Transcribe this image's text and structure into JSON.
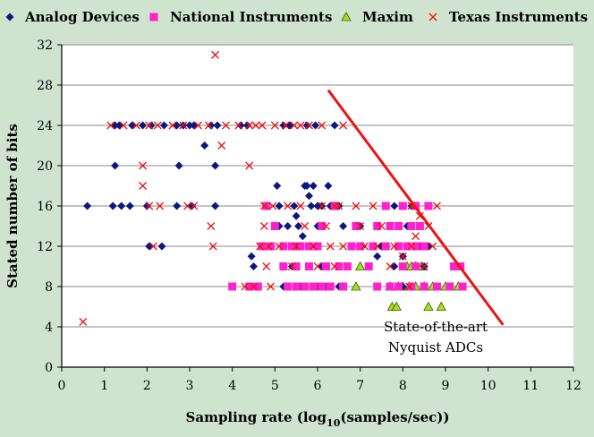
{
  "chart_data": {
    "type": "scatter",
    "title": "",
    "xlabel_main": "Sampling rate (log",
    "xlabel_sub": "10",
    "xlabel_tail": "(samples/sec))",
    "ylabel": "Stated number of bits",
    "xlim": [
      0,
      12
    ],
    "ylim": [
      0,
      32
    ],
    "xticks": [
      0,
      1,
      2,
      3,
      4,
      5,
      6,
      7,
      8,
      9,
      10,
      11,
      12
    ],
    "yticks": [
      0,
      4,
      8,
      12,
      16,
      20,
      24,
      28,
      32
    ],
    "grid": "horizontal",
    "legend_position": "top",
    "annotation_lines": [
      "State-of-the-art",
      "Nyquist ADCs"
    ],
    "frontier_line": {
      "x": [
        6.25,
        10.35
      ],
      "y": [
        27.5,
        4.2
      ],
      "color": "#ee1111"
    },
    "series": [
      {
        "name": "Analog Devices",
        "marker": "diamond",
        "color": "#0a1880",
        "points": [
          [
            0.6,
            16
          ],
          [
            1.2,
            16
          ],
          [
            1.4,
            16
          ],
          [
            1.6,
            16
          ],
          [
            1.25,
            20
          ],
          [
            1.25,
            24
          ],
          [
            1.35,
            24
          ],
          [
            1.65,
            24
          ],
          [
            1.9,
            24
          ],
          [
            2.1,
            24
          ],
          [
            2.4,
            24
          ],
          [
            2.0,
            16
          ],
          [
            2.05,
            12
          ],
          [
            2.35,
            12
          ],
          [
            2.7,
            16
          ],
          [
            2.75,
            20
          ],
          [
            2.7,
            24
          ],
          [
            2.85,
            24
          ],
          [
            3.0,
            24
          ],
          [
            3.1,
            24
          ],
          [
            3.35,
            22
          ],
          [
            3.6,
            20
          ],
          [
            3.65,
            24
          ],
          [
            3.5,
            24
          ],
          [
            3.6,
            16
          ],
          [
            3.05,
            16
          ],
          [
            4.2,
            24
          ],
          [
            4.35,
            24
          ],
          [
            4.45,
            11
          ],
          [
            4.5,
            10
          ],
          [
            5.05,
            18
          ],
          [
            5.1,
            16
          ],
          [
            5.1,
            14
          ],
          [
            5.2,
            24
          ],
          [
            5.35,
            24
          ],
          [
            5.5,
            15
          ],
          [
            5.45,
            16
          ],
          [
            5.5,
            12
          ],
          [
            5.5,
            10
          ],
          [
            5.55,
            14
          ],
          [
            5.7,
            18
          ],
          [
            5.65,
            13
          ],
          [
            5.75,
            18
          ],
          [
            5.8,
            17
          ],
          [
            5.85,
            16
          ],
          [
            5.9,
            18
          ],
          [
            5.95,
            12
          ],
          [
            6.0,
            14
          ],
          [
            5.75,
            24
          ],
          [
            5.95,
            24
          ],
          [
            6.1,
            10
          ],
          [
            6.25,
            18
          ],
          [
            6.3,
            16
          ],
          [
            6.4,
            24
          ],
          [
            6.5,
            8
          ],
          [
            5.2,
            8
          ],
          [
            5.4,
            10
          ],
          [
            5.6,
            8
          ],
          [
            6.2,
            8
          ],
          [
            6.0,
            16
          ],
          [
            6.1,
            16
          ],
          [
            6.5,
            16
          ],
          [
            6.8,
            12
          ],
          [
            7.0,
            14
          ],
          [
            7.05,
            12
          ],
          [
            7.5,
            12
          ],
          [
            7.8,
            10
          ],
          [
            7.9,
            8
          ],
          [
            8.0,
            11
          ],
          [
            8.1,
            14
          ],
          [
            8.3,
            10
          ],
          [
            8.4,
            12
          ],
          [
            8.5,
            8
          ],
          [
            8.6,
            12
          ],
          [
            7.6,
            16
          ],
          [
            7.8,
            16
          ],
          [
            8.2,
            16
          ],
          [
            8.4,
            14
          ],
          [
            7.4,
            11
          ],
          [
            8.1,
            12
          ],
          [
            8.0,
            8
          ],
          [
            7.7,
            8
          ],
          [
            8.5,
            10
          ],
          [
            6.0,
            8
          ],
          [
            5.3,
            14
          ],
          [
            6.6,
            14
          ]
        ]
      },
      {
        "name": "National Instruments",
        "marker": "square",
        "color": "#ff22cc",
        "points": [
          [
            4.0,
            8
          ],
          [
            4.4,
            8
          ],
          [
            4.5,
            8
          ],
          [
            4.6,
            8
          ],
          [
            4.7,
            12
          ],
          [
            4.9,
            12
          ],
          [
            5.2,
            12
          ],
          [
            5.4,
            12
          ],
          [
            5.6,
            12
          ],
          [
            5.8,
            12
          ],
          [
            6.0,
            12
          ],
          [
            5.3,
            8
          ],
          [
            5.5,
            8
          ],
          [
            5.7,
            8
          ],
          [
            5.9,
            8
          ],
          [
            6.1,
            8
          ],
          [
            6.3,
            8
          ],
          [
            6.6,
            8
          ],
          [
            5.2,
            10
          ],
          [
            5.5,
            10
          ],
          [
            5.8,
            10
          ],
          [
            6.2,
            10
          ],
          [
            6.5,
            10
          ],
          [
            6.8,
            12
          ],
          [
            7.0,
            12
          ],
          [
            7.3,
            12
          ],
          [
            7.6,
            12
          ],
          [
            7.9,
            12
          ],
          [
            8.1,
            12
          ],
          [
            8.3,
            12
          ],
          [
            8.5,
            12
          ],
          [
            7.4,
            8
          ],
          [
            7.7,
            8
          ],
          [
            7.9,
            8
          ],
          [
            8.2,
            8
          ],
          [
            8.5,
            8
          ],
          [
            8.8,
            8
          ],
          [
            9.1,
            8
          ],
          [
            9.4,
            8
          ],
          [
            9.2,
            10
          ],
          [
            9.35,
            10
          ],
          [
            8.0,
            10
          ],
          [
            8.3,
            10
          ],
          [
            7.2,
            10
          ],
          [
            6.9,
            14
          ],
          [
            7.4,
            14
          ],
          [
            7.7,
            14
          ],
          [
            7.9,
            14
          ],
          [
            8.2,
            14
          ],
          [
            8.4,
            14
          ],
          [
            8.6,
            16
          ],
          [
            7.6,
            16
          ],
          [
            8.0,
            16
          ],
          [
            8.3,
            16
          ],
          [
            5.0,
            14
          ],
          [
            4.8,
            16
          ],
          [
            6.1,
            14
          ],
          [
            6.4,
            16
          ],
          [
            6.7,
            10
          ]
        ]
      },
      {
        "name": "Maxim",
        "marker": "triangle",
        "color": "#aadd22",
        "points": [
          [
            6.9,
            8
          ],
          [
            7.75,
            6
          ],
          [
            7.85,
            6
          ],
          [
            7.7,
            8
          ],
          [
            8.0,
            8
          ],
          [
            8.15,
            8
          ],
          [
            8.3,
            8
          ],
          [
            8.5,
            8
          ],
          [
            8.1,
            10
          ],
          [
            8.3,
            10
          ],
          [
            8.45,
            10
          ],
          [
            8.6,
            6
          ],
          [
            8.9,
            6
          ],
          [
            8.7,
            8
          ],
          [
            9.0,
            8
          ],
          [
            9.3,
            8
          ],
          [
            7.0,
            10
          ],
          [
            7.9,
            8
          ],
          [
            8.2,
            10
          ]
        ]
      },
      {
        "name": "Texas Instruments",
        "marker": "x",
        "color": "#ee1111",
        "points": [
          [
            0.5,
            4.5
          ],
          [
            1.15,
            24
          ],
          [
            1.45,
            24
          ],
          [
            1.75,
            24
          ],
          [
            1.9,
            20
          ],
          [
            1.9,
            18
          ],
          [
            2.05,
            16
          ],
          [
            2.15,
            12
          ],
          [
            2.3,
            16
          ],
          [
            2.05,
            24
          ],
          [
            2.25,
            24
          ],
          [
            2.6,
            24
          ],
          [
            2.85,
            24
          ],
          [
            2.95,
            16
          ],
          [
            3.1,
            16
          ],
          [
            3.2,
            24
          ],
          [
            3.45,
            24
          ],
          [
            3.5,
            14
          ],
          [
            3.55,
            12
          ],
          [
            3.6,
            31
          ],
          [
            3.75,
            22
          ],
          [
            3.85,
            24
          ],
          [
            4.15,
            24
          ],
          [
            4.4,
            20
          ],
          [
            4.4,
            24
          ],
          [
            4.55,
            24
          ],
          [
            4.7,
            24
          ],
          [
            4.75,
            16
          ],
          [
            4.75,
            14
          ],
          [
            4.65,
            12
          ],
          [
            4.8,
            10
          ],
          [
            4.9,
            8
          ],
          [
            5.0,
            24
          ],
          [
            5.25,
            24
          ],
          [
            5.45,
            24
          ],
          [
            5.6,
            24
          ],
          [
            5.8,
            24
          ],
          [
            6.1,
            24
          ],
          [
            6.6,
            24
          ],
          [
            4.95,
            16
          ],
          [
            5.3,
            16
          ],
          [
            5.6,
            16
          ],
          [
            6.1,
            16
          ],
          [
            6.4,
            16
          ],
          [
            5.1,
            12
          ],
          [
            5.5,
            12
          ],
          [
            5.9,
            12
          ],
          [
            6.3,
            12
          ],
          [
            6.6,
            12
          ],
          [
            6.5,
            16
          ],
          [
            6.9,
            16
          ],
          [
            7.3,
            16
          ],
          [
            7.1,
            12
          ],
          [
            7.4,
            12
          ],
          [
            7.8,
            12
          ],
          [
            8.2,
            12
          ],
          [
            8.6,
            14
          ],
          [
            8.3,
            13
          ],
          [
            8.4,
            15
          ],
          [
            8.0,
            11
          ],
          [
            8.15,
            8
          ],
          [
            8.5,
            10
          ],
          [
            7.7,
            10
          ],
          [
            7.5,
            14
          ],
          [
            8.2,
            16
          ],
          [
            8.7,
            12
          ],
          [
            5.4,
            10
          ],
          [
            6.0,
            10
          ],
          [
            6.4,
            10
          ],
          [
            7.0,
            14
          ],
          [
            8.8,
            16
          ],
          [
            4.5,
            8
          ],
          [
            4.3,
            8
          ],
          [
            5.7,
            14
          ],
          [
            6.2,
            14
          ],
          [
            4.85,
            12
          ]
        ]
      }
    ]
  }
}
